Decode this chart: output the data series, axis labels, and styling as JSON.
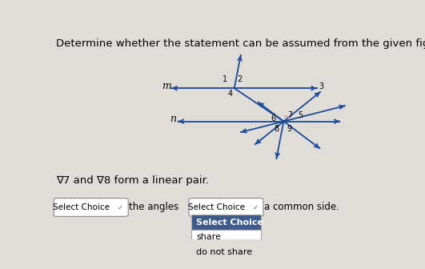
{
  "title": "Determine whether the statement can be assumed from the given figure. Explain.",
  "title_fontsize": 9.5,
  "background_color": "#e0ddd8",
  "line_color": "#1a4a9a",
  "label_text": "∇7 and ∇8 form a linear pair.",
  "label_fontsize": 9.5,
  "dropdown1_text": "Select Choice",
  "middle_text": "the angles",
  "dropdown2_text": "Select Choice",
  "end_text": "a common side.",
  "dropdown_menu": [
    "Select Choice",
    "share",
    "do not share"
  ],
  "fig_width": 5.31,
  "fig_height": 3.36,
  "dpi": 100,
  "p1x": 0.55,
  "p1y": 0.73,
  "p2x": 0.7,
  "p2y": 0.57,
  "arrow_scale": 8,
  "line_width": 1.3
}
